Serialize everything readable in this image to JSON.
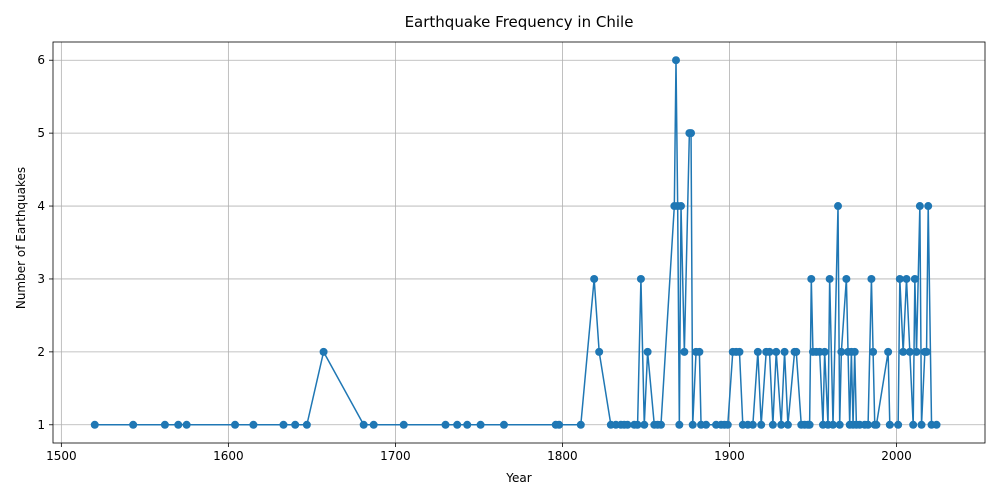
{
  "chart_data": {
    "type": "line",
    "title": "Earthquake Frequency in Chile",
    "xlabel": "Year",
    "ylabel": "Number of Earthquakes",
    "xlim": [
      1495,
      2053
    ],
    "ylim": [
      0.75,
      6.25
    ],
    "xticks": [
      1500,
      1600,
      1700,
      1800,
      1900,
      2000
    ],
    "yticks": [
      1,
      2,
      3,
      4,
      5,
      6
    ],
    "grid": true,
    "legend": "none",
    "color": "#1f77b4",
    "x": [
      1520,
      1543,
      1562,
      1570,
      1575,
      1604,
      1615,
      1633,
      1640,
      1647,
      1657,
      1681,
      1687,
      1705,
      1730,
      1737,
      1743,
      1751,
      1765,
      1796,
      1798,
      1811,
      1819,
      1822,
      1829,
      1832,
      1835,
      1837,
      1839,
      1843,
      1845,
      1847,
      1849,
      1851,
      1855,
      1857,
      1859,
      1867,
      1868,
      1869,
      1870,
      1871,
      1873,
      1876,
      1877,
      1878,
      1880,
      1882,
      1883,
      1886,
      1892,
      1895,
      1897,
      1899,
      1902,
      1904,
      1906,
      1908,
      1911,
      1914,
      1917,
      1919,
      1922,
      1924,
      1926,
      1928,
      1931,
      1933,
      1935,
      1939,
      1940,
      1943,
      1945,
      1947,
      1948,
      1949,
      1950,
      1952,
      1954,
      1956,
      1957,
      1959,
      1960,
      1962,
      1965,
      1966,
      1967,
      1970,
      1971,
      1972,
      1973,
      1974,
      1975,
      1976,
      1978,
      1981,
      1983,
      1985,
      1986,
      1987,
      1988,
      1995,
      1996,
      2001,
      2002,
      2004,
      2006,
      2008,
      2010,
      2011,
      2012,
      2014,
      2015,
      2017,
      2018,
      2019,
      2021,
      2024
    ],
    "values": [
      1,
      1,
      1,
      1,
      1,
      1,
      1,
      1,
      1,
      1,
      2,
      1,
      1,
      1,
      1,
      1,
      1,
      1,
      1,
      1,
      1,
      1,
      3,
      2,
      1,
      1,
      1,
      1,
      1,
      1,
      1,
      3,
      1,
      2,
      1,
      1,
      1,
      4,
      6,
      4,
      1,
      4,
      2,
      5,
      5,
      1,
      2,
      2,
      1,
      1,
      1,
      1,
      1,
      1,
      2,
      2,
      2,
      1,
      1,
      1,
      2,
      1,
      2,
      2,
      1,
      2,
      1,
      2,
      1,
      2,
      2,
      1,
      1,
      1,
      1,
      3,
      2,
      2,
      2,
      1,
      2,
      1,
      3,
      1,
      4,
      1,
      2,
      3,
      2,
      1,
      2,
      1,
      2,
      1,
      1,
      1,
      1,
      3,
      2,
      1,
      1,
      2,
      1,
      1,
      3,
      2,
      3,
      2,
      1,
      3,
      2,
      4,
      1,
      2,
      2,
      4,
      1,
      1
    ]
  }
}
